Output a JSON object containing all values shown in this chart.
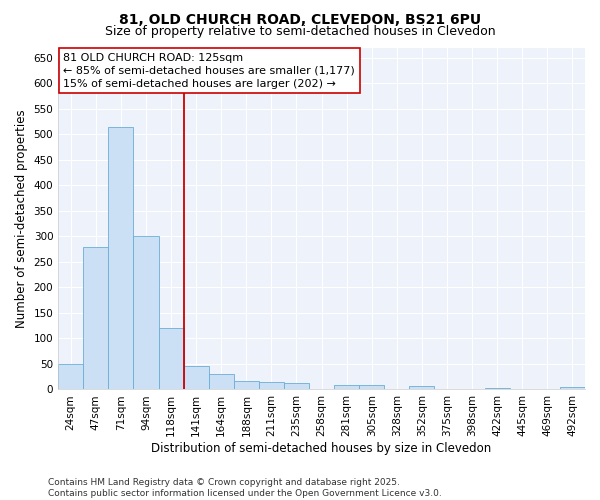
{
  "title_line1": "81, OLD CHURCH ROAD, CLEVEDON, BS21 6PU",
  "title_line2": "Size of property relative to semi-detached houses in Clevedon",
  "xlabel": "Distribution of semi-detached houses by size in Clevedon",
  "ylabel": "Number of semi-detached properties",
  "bar_color": "#cce0f5",
  "bar_edge_color": "#6aaed6",
  "categories": [
    "24sqm",
    "47sqm",
    "71sqm",
    "94sqm",
    "118sqm",
    "141sqm",
    "164sqm",
    "188sqm",
    "211sqm",
    "235sqm",
    "258sqm",
    "281sqm",
    "305sqm",
    "328sqm",
    "352sqm",
    "375sqm",
    "398sqm",
    "422sqm",
    "445sqm",
    "469sqm",
    "492sqm"
  ],
  "values": [
    50,
    280,
    515,
    300,
    120,
    46,
    30,
    17,
    15,
    13,
    0,
    8,
    8,
    0,
    6,
    0,
    0,
    2,
    0,
    0,
    4
  ],
  "vline_color": "#cc0000",
  "annotation_line1": "81 OLD CHURCH ROAD: 125sqm",
  "annotation_line2": "← 85% of semi-detached houses are smaller (1,177)",
  "annotation_line3": "15% of semi-detached houses are larger (202) →",
  "annotation_box_color": "#cc0000",
  "ylim": [
    0,
    670
  ],
  "yticks": [
    0,
    50,
    100,
    150,
    200,
    250,
    300,
    350,
    400,
    450,
    500,
    550,
    600,
    650
  ],
  "footnote": "Contains HM Land Registry data © Crown copyright and database right 2025.\nContains public sector information licensed under the Open Government Licence v3.0.",
  "background_color": "#eef3fb",
  "grid_color": "#ffffff",
  "title_fontsize": 10,
  "subtitle_fontsize": 9,
  "axis_label_fontsize": 8.5,
  "tick_fontsize": 7.5,
  "annotation_fontsize": 8,
  "footnote_fontsize": 6.5
}
